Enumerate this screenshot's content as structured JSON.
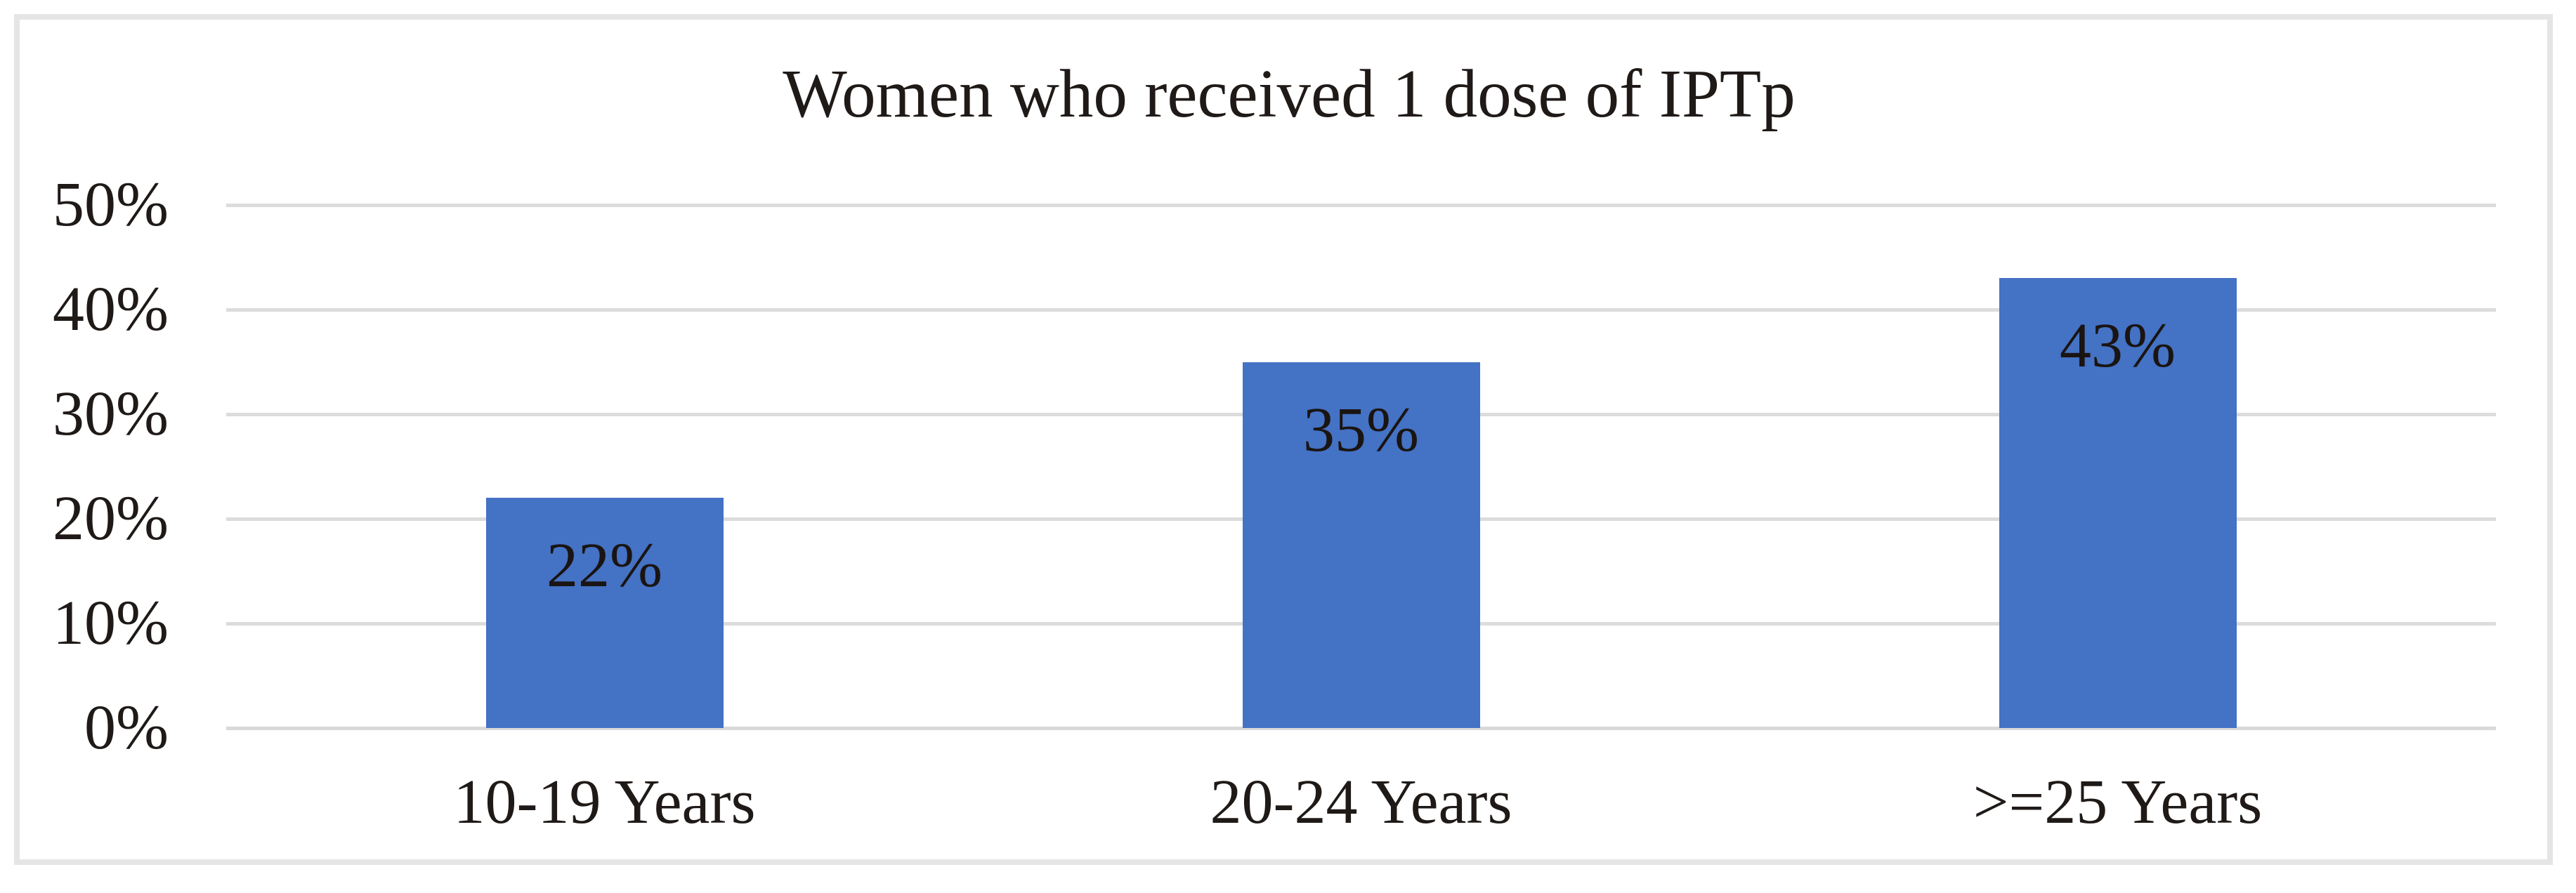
{
  "chart_data": {
    "type": "bar",
    "title": "Women who received 1 dose of IPTp",
    "categories": [
      "10-19 Years",
      "20-24 Years",
      ">=25 Years"
    ],
    "series": [
      {
        "name": "Women who received 1 dose of IPTp",
        "values": [
          22,
          35,
          43
        ],
        "data_labels": [
          "22%",
          "35%",
          "43%"
        ]
      }
    ],
    "xlabel": "",
    "ylabel": "",
    "ylim": [
      0,
      50
    ],
    "y_tick_values": [
      0,
      10,
      20,
      30,
      40,
      50
    ],
    "y_tick_labels": [
      "0%",
      "10%",
      "20%",
      "30%",
      "40%",
      "50%"
    ],
    "grid": "horizontal-on",
    "legend_position": "none",
    "data_label_position": "inside-end",
    "colors": {
      "bar_fill": "#4472c4",
      "text": "#1f1a17",
      "gridline": "#dcdcdc",
      "frame_border": "#e5e5e5",
      "background": "#ffffff"
    }
  }
}
